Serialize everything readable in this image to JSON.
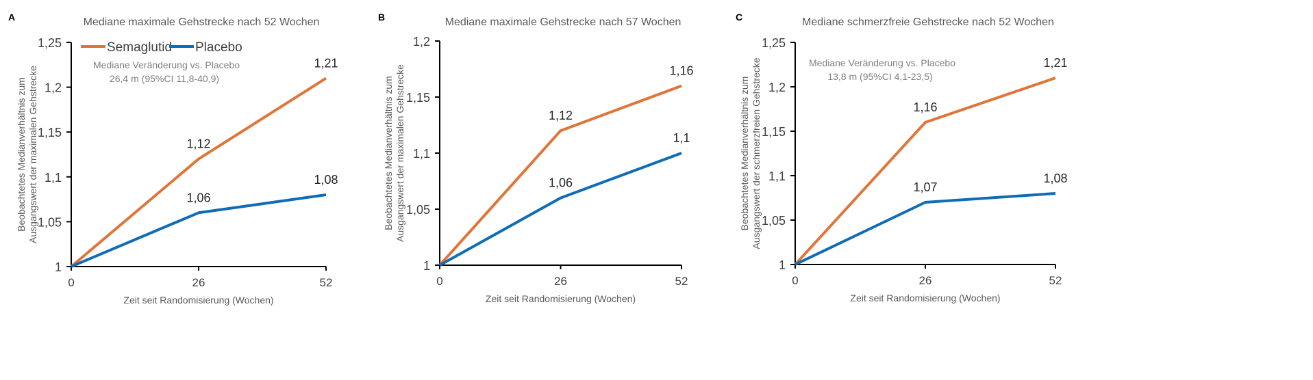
{
  "colors": {
    "Semaglutid": "#E07538",
    "Placebo": "#0F6CB6",
    "axis": "#000000",
    "text": "#595959"
  },
  "chart_data": [
    {
      "panel": "A",
      "type": "line",
      "title": "Mediane maximale Gehstrecke nach 52 Wochen",
      "xlabel": "Zeit seit Randomisierung (Wochen)",
      "ylabel": [
        "Beobachtetes Medianverhältnis zum",
        "Ausgangswert der maximalen Gehstrecke"
      ],
      "x": [
        0,
        26,
        52
      ],
      "xticks": [
        "0",
        "26",
        "52"
      ],
      "ylim": [
        1,
        1.25
      ],
      "yticks": [
        "1",
        "1,05",
        "1,1",
        "1,15",
        "1,2",
        "1,25"
      ],
      "legend": [
        "Semaglutid",
        "Placebo"
      ],
      "annotation": [
        "Mediane Veränderung vs. Placebo",
        "26,4 m (95%CI 11,8-40,9)"
      ],
      "series": [
        {
          "name": "Semaglutid",
          "values": [
            1,
            1.12,
            1.21
          ],
          "labels": [
            "",
            "1,12",
            "1,21"
          ]
        },
        {
          "name": "Placebo",
          "values": [
            1,
            1.06,
            1.08
          ],
          "labels": [
            "",
            "1,06",
            "1,08"
          ]
        }
      ]
    },
    {
      "panel": "B",
      "type": "line",
      "title": "Mediane maximale Gehstrecke nach 57 Wochen",
      "xlabel": "Zeit seit Randomisierung (Wochen)",
      "ylabel": [
        "Beobachtetes Medianverhältnis zum",
        "Ausgangswert der maximalen Gehstrecke"
      ],
      "x": [
        0,
        26,
        52
      ],
      "xticks": [
        "0",
        "26",
        "52"
      ],
      "ylim": [
        1,
        1.2
      ],
      "yticks": [
        "1",
        "1,05",
        "1,1",
        "1,15",
        "1,2"
      ],
      "series": [
        {
          "name": "Semaglutid",
          "values": [
            1,
            1.12,
            1.16
          ],
          "labels": [
            "",
            "1,12",
            "1,16"
          ]
        },
        {
          "name": "Placebo",
          "values": [
            1,
            1.06,
            1.1
          ],
          "labels": [
            "",
            "1,06",
            "1,1"
          ]
        }
      ]
    },
    {
      "panel": "C",
      "type": "line",
      "title": "Mediane schmerzfreie Gehstrecke nach 52 Wochen",
      "xlabel": "Zeit seit Randomisierung (Wochen)",
      "ylabel": [
        "Beobachtetes Medianverhältnis zum",
        "Ausgangswert der schmerzfreien  Gehstrecke"
      ],
      "x": [
        0,
        26,
        52
      ],
      "xticks": [
        "0",
        "26",
        "52"
      ],
      "ylim": [
        1,
        1.25
      ],
      "yticks": [
        "1",
        "1,05",
        "1,1",
        "1,15",
        "1,2",
        "1,25"
      ],
      "annotation": [
        "Mediane Veränderung vs. Placebo",
        "13,8 m (95%CI 4,1-23,5)"
      ],
      "series": [
        {
          "name": "Semaglutid",
          "values": [
            1,
            1.16,
            1.21
          ],
          "labels": [
            "",
            "1,16",
            "1,21"
          ]
        },
        {
          "name": "Placebo",
          "values": [
            1,
            1.07,
            1.08
          ],
          "labels": [
            "",
            "1,07",
            "1,08"
          ]
        }
      ]
    }
  ]
}
